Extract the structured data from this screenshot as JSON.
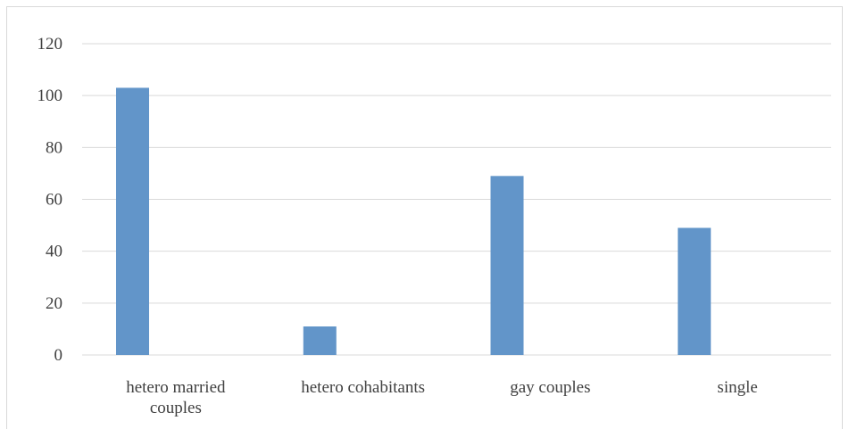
{
  "chart_data": {
    "type": "bar",
    "categories": [
      "hetero married couples",
      "hetero cohabitants",
      "gay couples",
      "single"
    ],
    "category_lines": [
      [
        "hetero married",
        "couples"
      ],
      [
        "hetero cohabitants"
      ],
      [
        "gay couples"
      ],
      [
        "single"
      ]
    ],
    "series": [
      {
        "values": [
          103,
          11,
          69,
          49
        ]
      }
    ],
    "yticks": [
      "0",
      "20",
      "40",
      "60",
      "80",
      "100",
      "120"
    ],
    "ylim": [
      0,
      120
    ],
    "title": "",
    "xlabel": "",
    "ylabel": "",
    "grid": true,
    "legend": "none",
    "colors": {
      "bar": "#6295c9",
      "grid": "#d9d9d9",
      "text": "#404040"
    }
  }
}
